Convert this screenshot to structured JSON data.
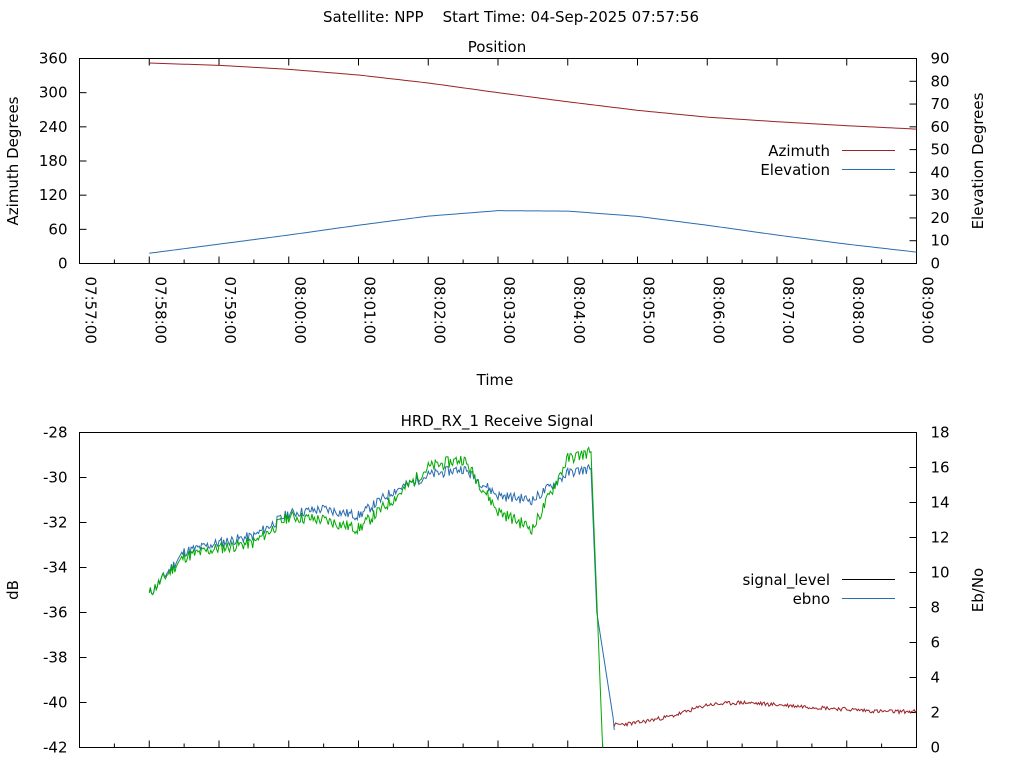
{
  "page": {
    "header": "Satellite: NPP    Start Time: 04-Sep-2025 07:57:56"
  },
  "colors": {
    "azimuth": "#9b2226",
    "elevation": "#2a6db0",
    "signal_level": "#000000",
    "ebno": "#2a6db0",
    "ebno_overlay": "#00aa00",
    "low_segment": "#9b2226"
  },
  "chart_data": [
    {
      "type": "line",
      "title": "Position",
      "xlabel": "Time",
      "ylabel": "Azimuth Degrees",
      "y2label": "Elevation Degrees",
      "xlim": [
        "07:57:00",
        "08:09:00"
      ],
      "ylim": [
        0,
        360
      ],
      "y2lim": [
        0,
        90
      ],
      "xticks": [
        "07:57:00",
        "07:58:00",
        "07:59:00",
        "08:00:00",
        "08:01:00",
        "08:02:00",
        "08:03:00",
        "08:04:00",
        "08:05:00",
        "08:06:00",
        "08:07:00",
        "08:08:00",
        "08:09:00"
      ],
      "yticks": [
        "0",
        "60",
        "120",
        "180",
        "240",
        "300",
        "360"
      ],
      "y2ticks": [
        "0",
        "10",
        "20",
        "30",
        "40",
        "50",
        "60",
        "70",
        "80",
        "90"
      ],
      "legend_position": "right",
      "series": [
        {
          "name": "Azimuth",
          "axis": "left",
          "x": [
            "07:58:00",
            "07:59:00",
            "08:00:00",
            "08:01:00",
            "08:02:00",
            "08:03:00",
            "08:04:00",
            "08:05:00",
            "08:06:00",
            "08:07:00",
            "08:08:00",
            "08:09:00"
          ],
          "values": [
            352,
            348,
            341,
            331,
            317,
            300,
            284,
            269,
            257,
            249,
            242,
            236
          ]
        },
        {
          "name": "Elevation",
          "axis": "right",
          "x": [
            "07:58:00",
            "07:59:00",
            "08:00:00",
            "08:01:00",
            "08:02:00",
            "08:03:00",
            "08:04:00",
            "08:05:00",
            "08:06:00",
            "08:07:00",
            "08:08:00",
            "08:09:00"
          ],
          "values": [
            4.5,
            8.5,
            12.5,
            16.8,
            20.8,
            23.2,
            23.0,
            20.7,
            16.8,
            12.5,
            8.5,
            5.0
          ]
        }
      ]
    },
    {
      "type": "line",
      "title": "HRD_RX_1 Receive Signal",
      "ylabel": "dB",
      "y2label": "Eb/No",
      "ylim": [
        -42,
        -28
      ],
      "y2lim": [
        0,
        18
      ],
      "yticks": [
        "-28",
        "-30",
        "-32",
        "-34",
        "-36",
        "-38",
        "-40",
        "-42"
      ],
      "y2ticks": [
        "0",
        "2",
        "4",
        "6",
        "8",
        "10",
        "12",
        "14",
        "16",
        "18"
      ],
      "legend_position": "right",
      "series": [
        {
          "name": "signal_level",
          "axis": "left",
          "x": [
            "07:58:00",
            "07:58:30",
            "07:59:00",
            "07:59:30",
            "08:00:00",
            "08:00:30",
            "08:01:00",
            "08:01:30",
            "08:02:00",
            "08:02:30",
            "08:03:00",
            "08:03:30",
            "08:04:00",
            "08:04:20",
            "08:04:25",
            "08:04:40",
            "08:05:00",
            "08:05:30",
            "08:06:00",
            "08:06:30",
            "08:07:00",
            "08:07:30",
            "08:08:00",
            "08:08:30",
            "08:09:00"
          ],
          "values": [
            -35.2,
            -33.3,
            -32.9,
            -32.6,
            -31.6,
            -31.4,
            -31.7,
            -30.6,
            -29.9,
            -29.6,
            -30.8,
            -31.0,
            -29.8,
            -29.6,
            -36.0,
            -41.0,
            -40.9,
            -40.6,
            -40.1,
            -40.0,
            -40.1,
            -40.2,
            -40.3,
            -40.4,
            -40.4
          ]
        },
        {
          "name": "ebno",
          "axis": "right",
          "x": [
            "07:58:00",
            "07:58:30",
            "07:59:00",
            "07:59:30",
            "08:00:00",
            "08:00:30",
            "08:01:00",
            "08:01:30",
            "08:02:00",
            "08:02:30",
            "08:03:00",
            "08:03:30",
            "08:04:00",
            "08:04:20",
            "08:04:30"
          ],
          "values": [
            8.8,
            10.9,
            11.4,
            11.7,
            13.2,
            13.0,
            12.5,
            14.2,
            16.0,
            16.5,
            13.5,
            12.5,
            16.5,
            16.9,
            0.0
          ]
        }
      ]
    }
  ]
}
